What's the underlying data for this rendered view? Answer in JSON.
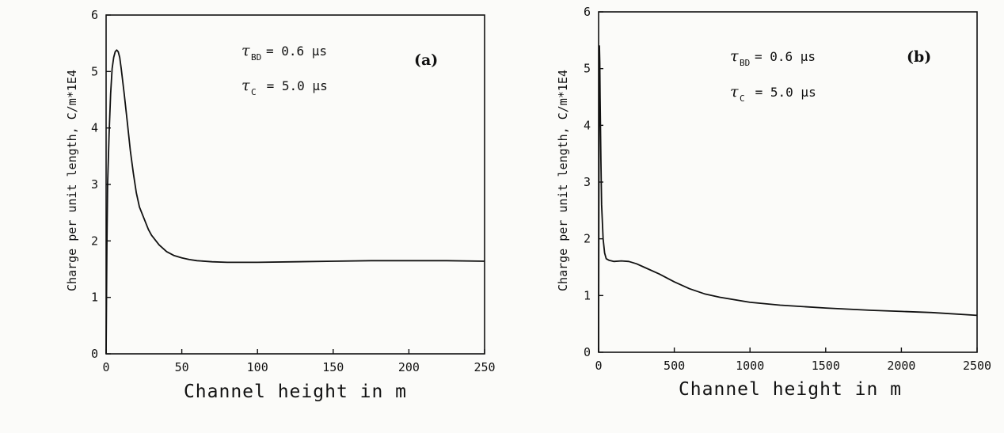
{
  "chart_data": [
    {
      "type": "line",
      "panel_label": "(a)",
      "xlabel": "Channel height in m",
      "ylabel": "Charge per unit length,  C/m*1E4",
      "xlim": [
        0,
        250
      ],
      "ylim": [
        0,
        6
      ],
      "xticks": [
        "0",
        "50",
        "100",
        "150",
        "200",
        "250"
      ],
      "yticks": [
        "0",
        "1",
        "2",
        "3",
        "4",
        "5",
        "6"
      ],
      "grid": false,
      "annotations": [
        {
          "symbol": "τ",
          "subscript": "BD",
          "text": "= 0.6 µs"
        },
        {
          "symbol": "τ",
          "subscript": "C",
          "text": " = 5.0 µs"
        }
      ],
      "series": [
        {
          "x": [
            0,
            0.5,
            1,
            2,
            3,
            4,
            5,
            6,
            7,
            8,
            9,
            10,
            12,
            14,
            16,
            18,
            20,
            22,
            25,
            28,
            30,
            35,
            40,
            45,
            50,
            55,
            60,
            70,
            80,
            100,
            125,
            150,
            175,
            200,
            225,
            250
          ],
          "y": [
            0,
            1.9,
            3.0,
            3.9,
            4.6,
            5.05,
            5.25,
            5.35,
            5.38,
            5.35,
            5.25,
            5.05,
            4.6,
            4.1,
            3.6,
            3.2,
            2.85,
            2.6,
            2.4,
            2.2,
            2.1,
            1.93,
            1.81,
            1.74,
            1.7,
            1.67,
            1.65,
            1.63,
            1.62,
            1.62,
            1.63,
            1.64,
            1.65,
            1.65,
            1.65,
            1.64
          ]
        }
      ]
    },
    {
      "type": "line",
      "panel_label": "(b)",
      "xlabel": "Channel height in m",
      "ylabel": "Charge per unit length,  C/m*1E4",
      "xlim": [
        0,
        2500
      ],
      "ylim": [
        0,
        6
      ],
      "xticks": [
        "0",
        "500",
        "1000",
        "1500",
        "2000",
        "2500"
      ],
      "yticks": [
        "0",
        "1",
        "2",
        "3",
        "4",
        "5",
        "6"
      ],
      "grid": false,
      "annotations": [
        {
          "symbol": "τ",
          "subscript": "BD",
          "text": "= 0.6 µs"
        },
        {
          "symbol": "τ",
          "subscript": "C",
          "text": " = 5.0 µs"
        }
      ],
      "series": [
        {
          "x": [
            0,
            3,
            5,
            8,
            10,
            15,
            20,
            30,
            40,
            50,
            70,
            100,
            150,
            200,
            250,
            300,
            400,
            500,
            600,
            700,
            800,
            1000,
            1200,
            1500,
            1800,
            2000,
            2200,
            2500
          ],
          "y": [
            0,
            4.4,
            5.4,
            5.1,
            4.5,
            3.4,
            2.6,
            2.0,
            1.75,
            1.65,
            1.62,
            1.6,
            1.61,
            1.6,
            1.56,
            1.5,
            1.38,
            1.24,
            1.12,
            1.03,
            0.97,
            0.88,
            0.83,
            0.78,
            0.74,
            0.72,
            0.7,
            0.65
          ]
        }
      ]
    }
  ]
}
